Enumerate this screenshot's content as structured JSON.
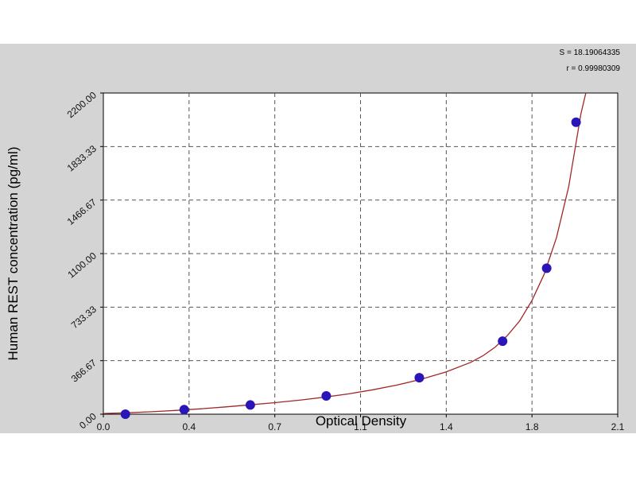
{
  "chart_data": {
    "type": "scatter",
    "title": "",
    "xlabel": "Optical Density",
    "ylabel": "Human REST concentration (pg/ml)",
    "xlim": [
      0.0,
      2.1
    ],
    "ylim": [
      0.0,
      2200.0
    ],
    "x_ticks": [
      "0.0",
      "0.4",
      "0.7",
      "1.1",
      "1.4",
      "1.8",
      "2.1"
    ],
    "y_ticks": [
      "0.00",
      "366.67",
      "733.33",
      "1100.00",
      "1466.67",
      "1833.33",
      "2200.00"
    ],
    "grid": true,
    "stats": [
      "S = 18.19064335",
      "r = 0.99980309"
    ],
    "series": [
      {
        "kind": "points",
        "x": [
          0.09,
          0.33,
          0.6,
          0.91,
          1.29,
          1.63,
          1.81,
          1.93
        ],
        "y": [
          0,
          31,
          63,
          125,
          250,
          500,
          1000,
          2000
        ]
      },
      {
        "kind": "fit-curve",
        "x": [
          0.0,
          0.1,
          0.2,
          0.3,
          0.4,
          0.5,
          0.6,
          0.7,
          0.8,
          0.9,
          1.0,
          1.1,
          1.2,
          1.3,
          1.4,
          1.5,
          1.55,
          1.6,
          1.65,
          1.7,
          1.75,
          1.8,
          1.85,
          1.9,
          1.95,
          1.97
        ],
        "y": [
          5,
          10,
          17,
          26,
          37,
          50,
          64,
          79,
          96,
          116,
          139,
          167,
          200,
          240,
          290,
          355,
          400,
          460,
          540,
          640,
          780,
          960,
          1210,
          1560,
          2060,
          2200
        ]
      }
    ],
    "colors": {
      "points": "#2a16b8",
      "curve": "#a02828",
      "grid": "#555555",
      "plot_bg": "#ffffff",
      "figure_bg": "#d4d4d4"
    }
  }
}
